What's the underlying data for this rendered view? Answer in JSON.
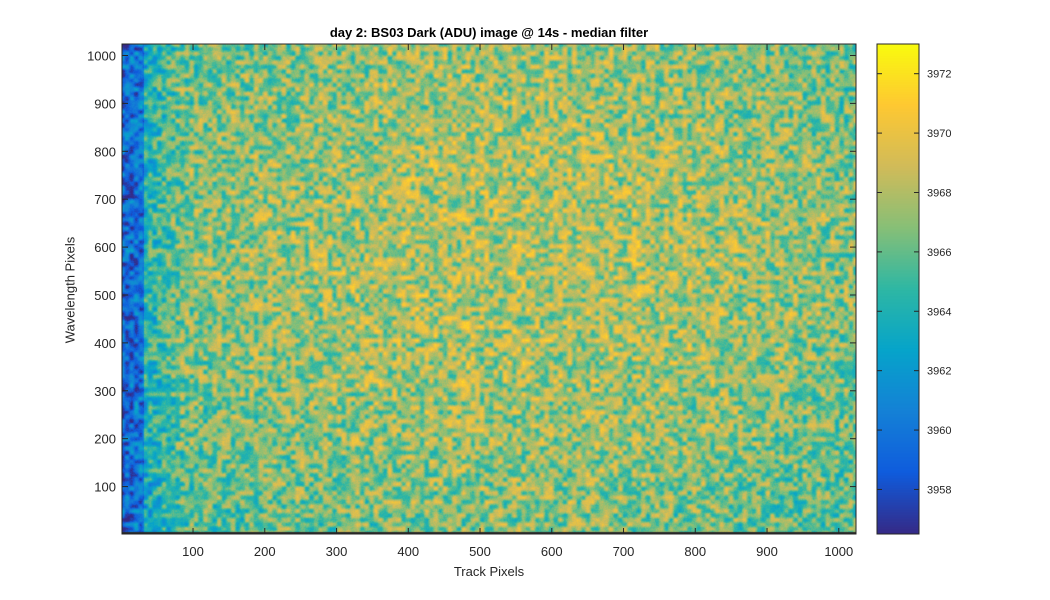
{
  "chart_data": {
    "type": "heatmap",
    "title": "day 2: BS03  Dark (ADU) image  @ 14s - median filter",
    "xlabel": "Track Pixels",
    "ylabel": "Wavelength Pixels",
    "xlim": [
      1,
      1024
    ],
    "ylim": [
      1,
      1024
    ],
    "x_ticks": [
      100,
      200,
      300,
      400,
      500,
      600,
      700,
      800,
      900,
      1000
    ],
    "y_ticks": [
      100,
      200,
      300,
      400,
      500,
      600,
      700,
      800,
      900,
      1000
    ],
    "colormap": "parula",
    "colorbar": {
      "clim": [
        3956.5,
        3973
      ],
      "ticks": [
        3958,
        3960,
        3962,
        3964,
        3966,
        3968,
        3970,
        3972
      ]
    },
    "value_summary": {
      "typical_range": [
        3962,
        3970
      ],
      "left_edge_columns_value": 3960,
      "center_band_value": 3968,
      "noise": "speckled median-filtered noise"
    },
    "colormap_stops": [
      "#352a87",
      "#0f5cdd",
      "#1481d6",
      "#06a4ca",
      "#2eb7a4",
      "#87bf77",
      "#d1bb59",
      "#fec832",
      "#f9fb0e"
    ]
  }
}
